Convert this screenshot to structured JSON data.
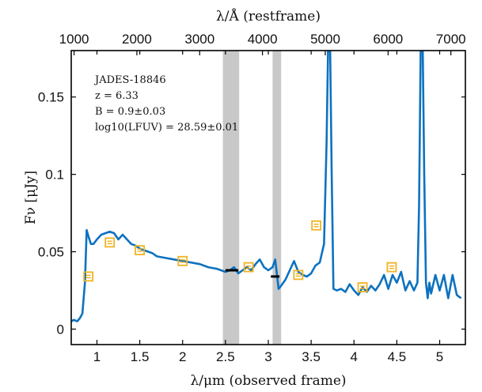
{
  "chart_data": {
    "type": "line",
    "top_axis": {
      "label": "λ/Å (restframe)",
      "ticks": [
        1000,
        2000,
        3000,
        4000,
        5000,
        6000,
        7000
      ],
      "tick_labels": [
        "1000",
        "2000",
        "3000",
        "4000",
        "5000",
        "6000",
        "7000"
      ]
    },
    "xlabel": "λ/μm (observed frame)",
    "ylabel": "Fν [μJy]",
    "xlim": [
      0.7,
      5.3
    ],
    "ylim": [
      -0.01,
      0.18
    ],
    "x_ticks": [
      1,
      1.5,
      2,
      2.5,
      3,
      3.5,
      4,
      4.5,
      5
    ],
    "x_tick_labels": [
      "1",
      "1.5",
      "2",
      "2.5",
      "3",
      "3.5",
      "4",
      "4.5",
      "5"
    ],
    "y_ticks": [
      0,
      0.05,
      0.1,
      0.15
    ],
    "y_tick_labels": [
      "0",
      "0.05",
      "0.1",
      "0.15"
    ],
    "annotation_lines": [
      "JADES-18846",
      "z = 6.33",
      "B = 0.9±0.03",
      "log10(LFUV) = 28.59±0.01"
    ],
    "shaded_regions": [
      {
        "x0": 2.47,
        "x1": 2.66,
        "color": "#c8c8c8"
      },
      {
        "x0": 3.05,
        "x1": 3.15,
        "color": "#c8c8c8"
      }
    ],
    "series": [
      {
        "kind": "model_spectrum",
        "color": "#0d72bf",
        "x": [
          0.7,
          0.73,
          0.77,
          0.8,
          0.83,
          0.86,
          0.88,
          0.9,
          0.93,
          0.96,
          1.0,
          1.05,
          1.1,
          1.15,
          1.2,
          1.25,
          1.3,
          1.35,
          1.4,
          1.45,
          1.5,
          1.55,
          1.6,
          1.65,
          1.7,
          1.8,
          1.9,
          2.0,
          2.1,
          2.2,
          2.3,
          2.4,
          2.5,
          2.55,
          2.6,
          2.65,
          2.7,
          2.75,
          2.8,
          2.85,
          2.9,
          2.95,
          3.0,
          3.05,
          3.08,
          3.12,
          3.15,
          3.2,
          3.25,
          3.3,
          3.35,
          3.4,
          3.45,
          3.5,
          3.55,
          3.6,
          3.65,
          3.68,
          3.7,
          3.72,
          3.74,
          3.76,
          3.8,
          3.85,
          3.9,
          3.95,
          4.0,
          4.05,
          4.1,
          4.15,
          4.2,
          4.25,
          4.3,
          4.35,
          4.4,
          4.45,
          4.5,
          4.55,
          4.6,
          4.65,
          4.7,
          4.74,
          4.76,
          4.78,
          4.8,
          4.82,
          4.84,
          4.86,
          4.88,
          4.9,
          4.95,
          5.0,
          5.05,
          5.1,
          5.15,
          5.2,
          5.25
        ],
        "values": [
          0.005,
          0.006,
          0.005,
          0.007,
          0.01,
          0.03,
          0.064,
          0.06,
          0.055,
          0.055,
          0.058,
          0.061,
          0.062,
          0.063,
          0.062,
          0.058,
          0.061,
          0.058,
          0.055,
          0.054,
          0.052,
          0.051,
          0.05,
          0.049,
          0.047,
          0.046,
          0.045,
          0.044,
          0.043,
          0.042,
          0.04,
          0.039,
          0.037,
          0.038,
          0.04,
          0.036,
          0.038,
          0.04,
          0.038,
          0.042,
          0.045,
          0.04,
          0.038,
          0.04,
          0.045,
          0.026,
          0.028,
          0.032,
          0.038,
          0.044,
          0.037,
          0.035,
          0.034,
          0.036,
          0.041,
          0.043,
          0.055,
          0.12,
          0.19,
          0.19,
          0.1,
          0.026,
          0.025,
          0.026,
          0.024,
          0.029,
          0.025,
          0.022,
          0.027,
          0.024,
          0.028,
          0.025,
          0.029,
          0.035,
          0.026,
          0.035,
          0.03,
          0.037,
          0.025,
          0.031,
          0.025,
          0.03,
          0.08,
          0.19,
          0.19,
          0.1,
          0.03,
          0.02,
          0.03,
          0.023,
          0.035,
          0.025,
          0.035,
          0.02,
          0.035,
          0.022,
          0.02
        ]
      },
      {
        "kind": "photometry_points",
        "color": "#f0b323",
        "x": [
          0.9,
          1.15,
          1.5,
          2.0,
          2.77,
          3.35,
          3.56,
          4.1,
          4.44
        ],
        "values": [
          0.034,
          0.056,
          0.051,
          0.044,
          0.04,
          0.035,
          0.067,
          0.027,
          0.04
        ]
      },
      {
        "kind": "medium_band_segments",
        "color": "#000000",
        "x0": [
          2.5,
          3.03
        ],
        "x1": [
          2.65,
          3.13
        ],
        "values": [
          0.038,
          0.034
        ]
      }
    ]
  }
}
